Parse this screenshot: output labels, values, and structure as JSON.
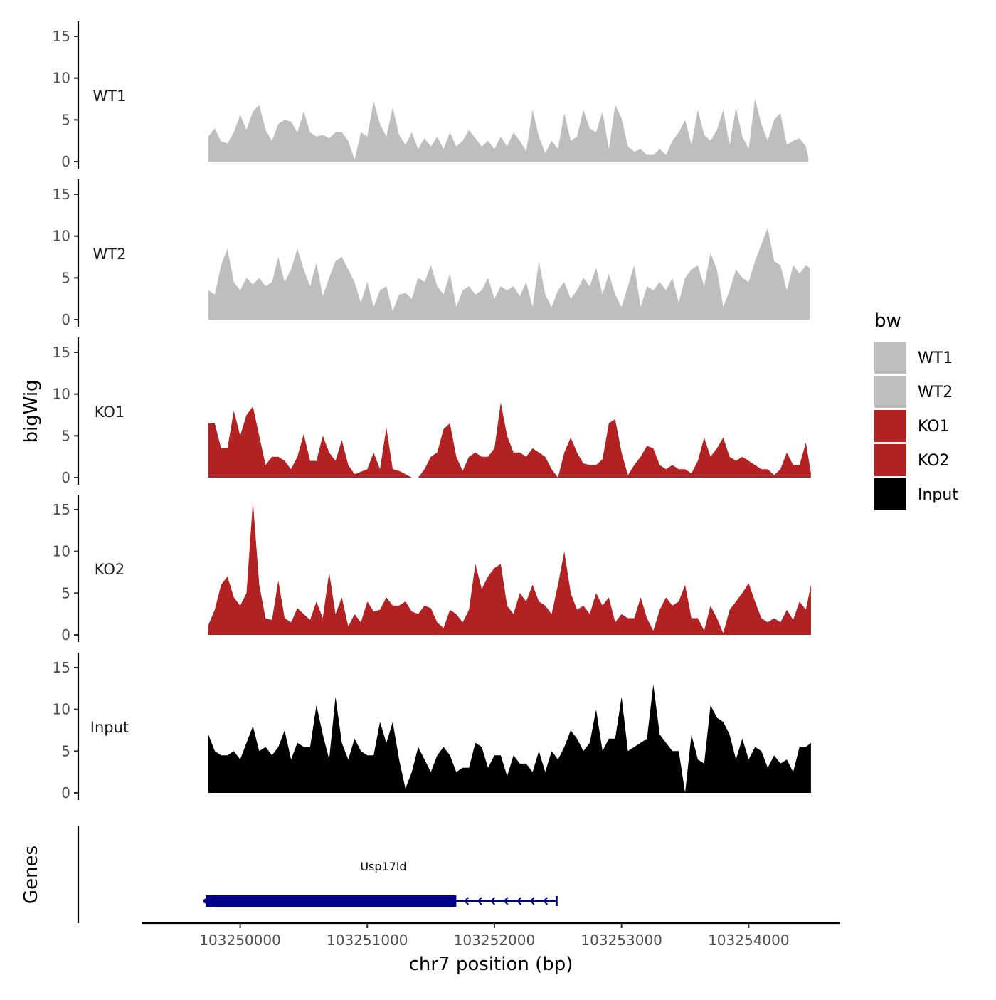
{
  "chart_data": {
    "type": "area",
    "title": "",
    "xlabel": "chr7 position (bp)",
    "ylabel": "bigWig",
    "genes_label": "Genes",
    "xlim": [
      103249230,
      103254720
    ],
    "ylim": [
      0,
      16
    ],
    "x_ticks": [
      103250000,
      103251000,
      103252000,
      103253000,
      103254000
    ],
    "y_ticks": [
      0,
      5,
      10,
      15
    ],
    "legend": {
      "title": "bw",
      "entries": [
        {
          "label": "WT1",
          "color": "#bebebe"
        },
        {
          "label": "WT2",
          "color": "#bebebe"
        },
        {
          "label": "KO1",
          "color": "#b22222"
        },
        {
          "label": "KO2",
          "color": "#b22222"
        },
        {
          "label": "Input",
          "color": "#000000"
        }
      ]
    },
    "tracks": [
      {
        "name": "WT1",
        "color": "#bebebe",
        "x": [
          103249750,
          103249800,
          103249850,
          103249900,
          103249950,
          103250000,
          103250050,
          103250100,
          103250150,
          103250200,
          103250250,
          103250300,
          103250350,
          103250400,
          103250450,
          103250500,
          103250550,
          103250600,
          103250650,
          103250700,
          103250750,
          103250800,
          103250850,
          103250900,
          103250950,
          103251000,
          103251050,
          103251100,
          103251150,
          103251200,
          103251250,
          103251300,
          103251350,
          103251400,
          103251450,
          103251500,
          103251550,
          103251600,
          103251650,
          103251700,
          103251750,
          103251800,
          103251850,
          103251900,
          103251950,
          103252000,
          103252050,
          103252100,
          103252150,
          103252200,
          103252250,
          103252300,
          103252350,
          103252400,
          103252450,
          103252500,
          103252550,
          103252600,
          103252650,
          103252700,
          103252750,
          103252800,
          103252850,
          103252900,
          103252950,
          103253000,
          103253050,
          103253100,
          103253150,
          103253200,
          103253250,
          103253300,
          103253350,
          103253400,
          103253450,
          103253500,
          103253550,
          103253600,
          103253650,
          103253700,
          103253750,
          103253800,
          103253850,
          103253900,
          103253950,
          103254000,
          103254050,
          103254100,
          103254150,
          103254200,
          103254250,
          103254300,
          103254350,
          103254400,
          103254450,
          103254470
        ],
        "y": [
          3,
          4,
          2.4,
          2.2,
          3.5,
          5.6,
          3.8,
          6,
          6.8,
          3.8,
          2.5,
          4.5,
          5,
          4.8,
          3.5,
          6,
          3.5,
          3,
          3.2,
          2.8,
          3.5,
          3.5,
          2.5,
          0.2,
          3.5,
          3,
          7.2,
          4.5,
          3,
          6.5,
          3.2,
          2,
          3.5,
          1.5,
          2.8,
          1.8,
          3,
          1.5,
          3.5,
          1.8,
          2.5,
          3.8,
          2.8,
          1.8,
          2.5,
          1.5,
          3,
          1.8,
          3.5,
          2.5,
          1.2,
          6.2,
          3,
          1,
          2.5,
          1.5,
          5.8,
          2.5,
          3,
          6.2,
          4,
          3.5,
          6,
          1.5,
          6.8,
          5.2,
          1.8,
          1.2,
          1.5,
          0.8,
          0.8,
          1.5,
          0.8,
          2.5,
          3.5,
          5,
          2,
          6.2,
          3.2,
          2.5,
          3.8,
          6.2,
          2,
          6.5,
          3,
          1.5,
          7.5,
          4.5,
          2.5,
          5,
          5.8,
          2,
          2.5,
          2.8,
          1.8,
          0.5
        ]
      },
      {
        "name": "WT2",
        "color": "#bebebe",
        "x": [
          103249750,
          103249800,
          103249850,
          103249900,
          103249950,
          103250000,
          103250050,
          103250100,
          103250150,
          103250200,
          103250250,
          103250300,
          103250350,
          103250400,
          103250450,
          103250500,
          103250550,
          103250600,
          103250650,
          103250700,
          103250750,
          103250800,
          103250850,
          103250900,
          103250950,
          103251000,
          103251050,
          103251100,
          103251150,
          103251200,
          103251250,
          103251300,
          103251350,
          103251400,
          103251450,
          103251500,
          103251550,
          103251600,
          103251650,
          103251700,
          103251750,
          103251800,
          103251850,
          103251900,
          103251950,
          103252000,
          103252050,
          103252100,
          103252150,
          103252200,
          103252250,
          103252300,
          103252350,
          103252400,
          103252450,
          103252500,
          103252550,
          103252600,
          103252650,
          103252700,
          103252750,
          103252800,
          103252850,
          103252900,
          103252950,
          103253000,
          103253050,
          103253100,
          103253150,
          103253200,
          103253250,
          103253300,
          103253350,
          103253400,
          103253450,
          103253500,
          103253550,
          103253600,
          103253650,
          103253700,
          103253750,
          103253800,
          103253850,
          103253900,
          103253950,
          103254000,
          103254050,
          103254100,
          103254150,
          103254200,
          103254250,
          103254300,
          103254350,
          103254400,
          103254450,
          103254480
        ],
        "y": [
          3.5,
          3,
          6.5,
          8.5,
          4.5,
          3.5,
          5,
          4.2,
          5,
          4,
          4.5,
          7.5,
          4.5,
          6,
          8.5,
          6,
          4,
          6.8,
          2.8,
          5,
          7,
          7.5,
          6,
          4.5,
          2,
          4.5,
          1.5,
          3.5,
          4,
          1,
          3,
          3.2,
          2.5,
          5,
          4.5,
          6.5,
          4,
          3,
          5.5,
          1.5,
          3.5,
          4,
          3,
          3.5,
          5,
          2.5,
          4,
          3.5,
          4,
          2.8,
          4.5,
          1.5,
          7,
          3,
          1.5,
          3.5,
          4.5,
          2.5,
          3.5,
          5,
          4,
          6.2,
          3,
          5.5,
          3,
          1.5,
          4,
          6.5,
          1.5,
          4,
          3.5,
          4.5,
          3.5,
          5,
          2,
          5,
          6,
          6.5,
          4,
          8,
          6,
          1.5,
          3.5,
          6,
          5,
          4.5,
          7,
          9,
          11,
          7,
          6.5,
          3.5,
          6.5,
          5.5,
          6.5,
          6.2
        ]
      },
      {
        "name": "KO1",
        "color": "#b22222",
        "x": [
          103249750,
          103249800,
          103249850,
          103249900,
          103249950,
          103250000,
          103250050,
          103250100,
          103250150,
          103250200,
          103250250,
          103250300,
          103250350,
          103250400,
          103250450,
          103250500,
          103250550,
          103250600,
          103250650,
          103250700,
          103250750,
          103250800,
          103250850,
          103250900,
          103250950,
          103251000,
          103251050,
          103251100,
          103251150,
          103251200,
          103251250,
          103251300,
          103251350,
          103251400,
          103251450,
          103251500,
          103251550,
          103251600,
          103251650,
          103251700,
          103251750,
          103251800,
          103251850,
          103251900,
          103251950,
          103252000,
          103252050,
          103252100,
          103252150,
          103252200,
          103252250,
          103252300,
          103252350,
          103252400,
          103252450,
          103252500,
          103252550,
          103252600,
          103252650,
          103252700,
          103252750,
          103252800,
          103252850,
          103252900,
          103252950,
          103253000,
          103253050,
          103253100,
          103253150,
          103253200,
          103253250,
          103253300,
          103253350,
          103253400,
          103253450,
          103253500,
          103253550,
          103253600,
          103253650,
          103253700,
          103253750,
          103253800,
          103253850,
          103253900,
          103253950,
          103254000,
          103254050,
          103254100,
          103254150,
          103254200,
          103254250,
          103254300,
          103254350,
          103254400,
          103254450,
          103254490
        ],
        "y": [
          6.5,
          6.5,
          3.5,
          3.5,
          8,
          5,
          7.5,
          8.5,
          5,
          1.5,
          2.5,
          2.5,
          2,
          1,
          2.5,
          5.2,
          2,
          2,
          5,
          3,
          2,
          4.5,
          1.5,
          0.4,
          0.7,
          1,
          3,
          1,
          6,
          1,
          0.8,
          0.4,
          0,
          0,
          1,
          2.5,
          3,
          5.8,
          6.5,
          2.5,
          0.8,
          2.5,
          3,
          2.5,
          2.5,
          3.5,
          9,
          5,
          3,
          3,
          2.5,
          3.5,
          3,
          2.5,
          1,
          0,
          3,
          4.8,
          3,
          1.7,
          1.5,
          1.5,
          2.2,
          6.5,
          7,
          3,
          0.3,
          1.5,
          2.5,
          3.8,
          3.5,
          1.5,
          1,
          1.5,
          1,
          1,
          0.5,
          2,
          4.8,
          2.5,
          3.5,
          4.8,
          2.5,
          2,
          2.5,
          2,
          1.5,
          1,
          1,
          0.3,
          1,
          3,
          1.5,
          1.5,
          4.2,
          0.5
        ]
      },
      {
        "name": "KO2",
        "color": "#b22222",
        "x": [
          103249750,
          103249800,
          103249850,
          103249900,
          103249950,
          103250000,
          103250050,
          103250100,
          103250150,
          103250200,
          103250250,
          103250300,
          103250350,
          103250400,
          103250450,
          103250500,
          103250550,
          103250600,
          103250650,
          103250700,
          103250750,
          103250800,
          103250850,
          103250900,
          103250950,
          103251000,
          103251050,
          103251100,
          103251150,
          103251200,
          103251250,
          103251300,
          103251350,
          103251400,
          103251450,
          103251500,
          103251550,
          103251600,
          103251650,
          103251700,
          103251750,
          103251800,
          103251850,
          103251900,
          103251950,
          103252000,
          103252050,
          103252100,
          103252150,
          103252200,
          103252250,
          103252300,
          103252350,
          103252400,
          103252450,
          103252500,
          103252550,
          103252600,
          103252650,
          103252700,
          103252750,
          103252800,
          103252850,
          103252900,
          103252950,
          103253000,
          103253050,
          103253100,
          103253150,
          103253200,
          103253250,
          103253300,
          103253350,
          103253400,
          103253450,
          103253500,
          103253550,
          103253600,
          103253650,
          103253700,
          103253750,
          103253800,
          103253850,
          103253900,
          103253950,
          103254000,
          103254050,
          103254100,
          103254150,
          103254200,
          103254250,
          103254300,
          103254350,
          103254400,
          103254450,
          103254490
        ],
        "y": [
          1.2,
          3,
          6,
          7,
          4.5,
          3.5,
          5,
          16,
          6,
          2,
          1.8,
          6.5,
          2,
          1.5,
          3.2,
          2.5,
          1.8,
          4,
          2,
          7.5,
          2.5,
          4.5,
          1,
          2.5,
          1.5,
          4,
          2.8,
          3,
          4.5,
          3.5,
          3.5,
          4,
          2.8,
          2.5,
          3.5,
          3.2,
          1.5,
          0.8,
          3,
          2.5,
          1.5,
          3,
          8.5,
          5.5,
          7,
          8,
          8.5,
          3.5,
          2.5,
          5,
          4,
          6,
          4,
          3.5,
          2.5,
          6,
          10,
          5,
          3,
          3.5,
          2.5,
          5,
          3.5,
          4.5,
          1.5,
          2.5,
          2,
          2,
          4.5,
          2,
          0.5,
          3,
          4.5,
          3.5,
          4,
          6,
          2,
          2,
          0.5,
          3.5,
          2,
          0.2,
          3,
          4,
          5,
          6.2,
          4,
          2,
          1.5,
          2,
          1.5,
          3,
          1.8,
          4,
          3,
          6
        ]
      },
      {
        "name": "Input",
        "color": "#000000",
        "x": [
          103249750,
          103249800,
          103249850,
          103249900,
          103249950,
          103250000,
          103250050,
          103250100,
          103250150,
          103250200,
          103250250,
          103250300,
          103250350,
          103250400,
          103250450,
          103250500,
          103250550,
          103250600,
          103250650,
          103250700,
          103250750,
          103250800,
          103250850,
          103250900,
          103250950,
          103251000,
          103251050,
          103251100,
          103251150,
          103251200,
          103251250,
          103251300,
          103251350,
          103251400,
          103251450,
          103251500,
          103251550,
          103251600,
          103251650,
          103251700,
          103251750,
          103251800,
          103251850,
          103251900,
          103251950,
          103252000,
          103252050,
          103252100,
          103252150,
          103252200,
          103252250,
          103252300,
          103252350,
          103252400,
          103252450,
          103252500,
          103252550,
          103252600,
          103252650,
          103252700,
          103252750,
          103252800,
          103252850,
          103252900,
          103252950,
          103253000,
          103253050,
          103253100,
          103253150,
          103253200,
          103253250,
          103253300,
          103253350,
          103253400,
          103253450,
          103253500,
          103253550,
          103253600,
          103253650,
          103253700,
          103253750,
          103253800,
          103253850,
          103253900,
          103253950,
          103254000,
          103254050,
          103254100,
          103254150,
          103254200,
          103254250,
          103254300,
          103254350,
          103254400,
          103254450,
          103254490
        ],
        "y": [
          7,
          5,
          4.5,
          4.5,
          5,
          4,
          6,
          8,
          5,
          5.5,
          4.5,
          5.5,
          7.5,
          4,
          6,
          5.5,
          5.5,
          10.5,
          7,
          4,
          11.5,
          6,
          4,
          6.5,
          5,
          4.5,
          4.5,
          8.5,
          6,
          8.5,
          4,
          0.5,
          2.5,
          5.5,
          4,
          2.5,
          4.5,
          5.5,
          4.5,
          2.5,
          3,
          3,
          6,
          5.5,
          3,
          4.5,
          4.5,
          2,
          4.5,
          3.5,
          3.5,
          2.5,
          5,
          2.5,
          5,
          4,
          5.5,
          7.5,
          6.5,
          5,
          6,
          10,
          5,
          6.5,
          6.5,
          11.5,
          5,
          5.5,
          6,
          6.5,
          13,
          7,
          6,
          5,
          5,
          0,
          7,
          4,
          3.5,
          10.5,
          9,
          8.5,
          7,
          4,
          6.5,
          4,
          5.5,
          5,
          3,
          4.5,
          3.5,
          4,
          2.5,
          5.5,
          5.5,
          6
        ]
      }
    ],
    "genes": [
      {
        "name": "Usp17ld",
        "start": 103249730,
        "end": 103252490,
        "thick_end": 103251700,
        "strand": "-",
        "color": "#00008b"
      }
    ]
  }
}
